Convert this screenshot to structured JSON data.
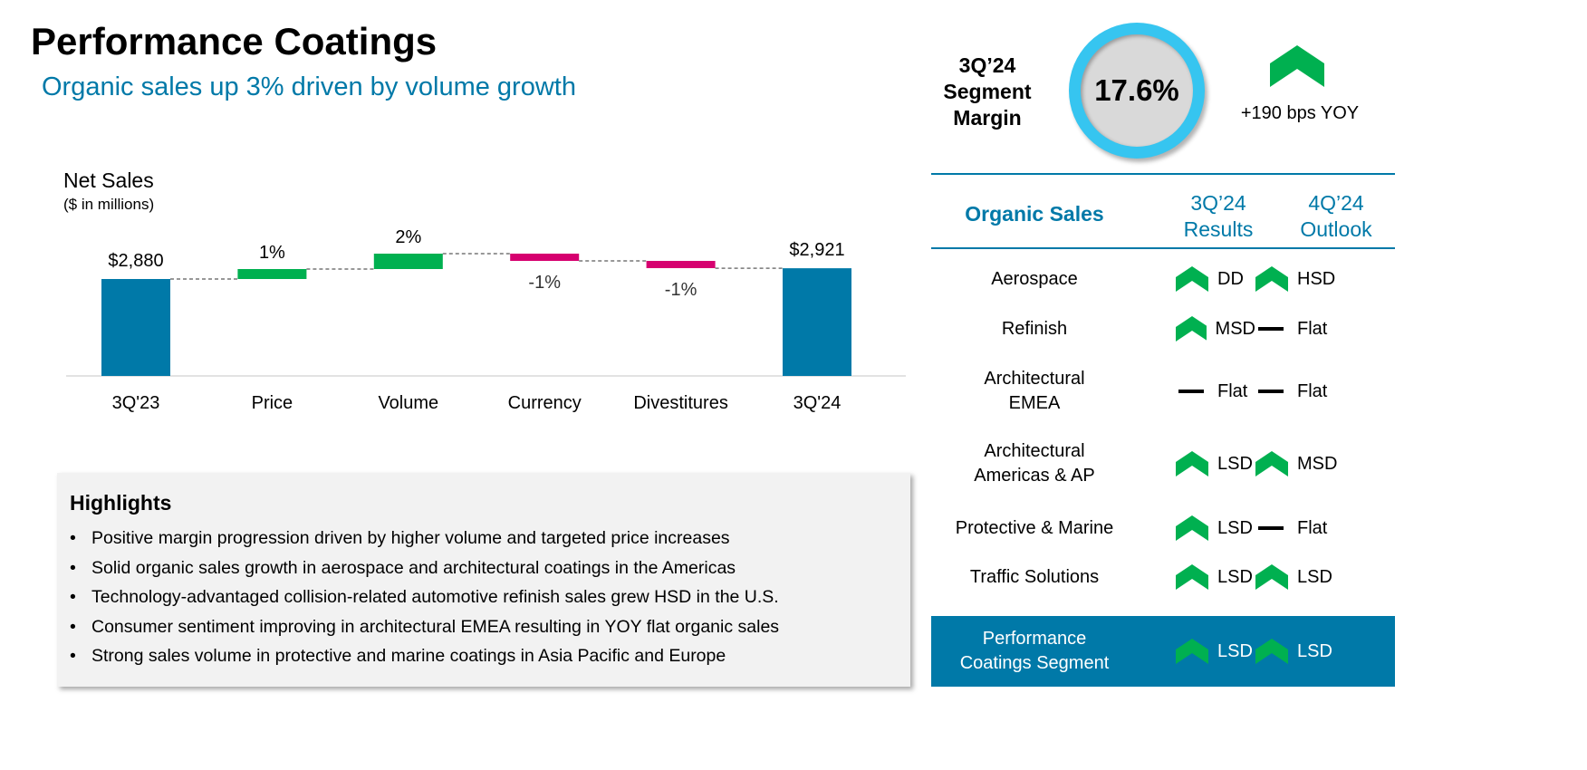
{
  "title": "Performance Coatings",
  "subtitle": "Organic sales up 3% driven by volume growth",
  "chart_data": {
    "type": "waterfall",
    "title": "Net Sales",
    "subtitle": "($ in millions)",
    "categories": [
      "3Q'23",
      "Price",
      "Volume",
      "Currency",
      "Divestitures",
      "3Q'24"
    ],
    "values": [
      2880,
      1,
      2,
      -1,
      -1,
      2921
    ],
    "labels": [
      "$2,880",
      "1%",
      "2%",
      "-1%",
      "-1%",
      "$2,921"
    ],
    "kinds": [
      "total",
      "change",
      "change",
      "change",
      "change",
      "total"
    ],
    "colors": {
      "total": "#0079a8",
      "increase": "#00b050",
      "decrease": "#d6006f"
    }
  },
  "highlights": {
    "title": "Highlights",
    "items": [
      "Positive margin progression driven by higher volume and targeted price increases",
      "Solid organic sales growth in aerospace and architectural coatings in the Americas",
      "Technology-advantaged collision-related automotive refinish sales grew HSD in the U.S.",
      "Consumer sentiment improving in architectural EMEA resulting in YOY flat organic sales",
      "Strong sales volume in protective and marine coatings in Asia Pacific and Europe"
    ]
  },
  "margin": {
    "label_lines": [
      "3Q’24",
      "Segment",
      "Margin"
    ],
    "value": "17.6%",
    "change": "+190 bps YOY",
    "trend": "up"
  },
  "table": {
    "header": {
      "label": "Organic Sales",
      "col1": [
        "3Q’24",
        "Results"
      ],
      "col2": [
        "4Q’24",
        "Outlook"
      ]
    },
    "rows": [
      {
        "label": [
          "Aerospace"
        ],
        "r": {
          "icon": "up",
          "text": "DD"
        },
        "o": {
          "icon": "up",
          "text": "HSD"
        }
      },
      {
        "label": [
          "Refinish"
        ],
        "r": {
          "icon": "up",
          "text": "MSD"
        },
        "o": {
          "icon": "flat",
          "text": "Flat"
        }
      },
      {
        "label": [
          "Architectural",
          "EMEA"
        ],
        "r": {
          "icon": "flat",
          "text": "Flat"
        },
        "o": {
          "icon": "flat",
          "text": "Flat"
        }
      },
      {
        "label": [
          "Architectural",
          "Americas & AP"
        ],
        "r": {
          "icon": "up",
          "text": "LSD"
        },
        "o": {
          "icon": "up",
          "text": "MSD"
        }
      },
      {
        "label": [
          "Protective & Marine"
        ],
        "r": {
          "icon": "up",
          "text": "LSD"
        },
        "o": {
          "icon": "flat",
          "text": "Flat"
        }
      },
      {
        "label": [
          "Traffic Solutions"
        ],
        "r": {
          "icon": "up",
          "text": "LSD"
        },
        "o": {
          "icon": "up",
          "text": "LSD"
        }
      },
      {
        "label": [
          "Performance",
          "Coatings Segment"
        ],
        "r": {
          "icon": "up",
          "text": "LSD"
        },
        "o": {
          "icon": "up",
          "text": "LSD"
        }
      }
    ]
  }
}
